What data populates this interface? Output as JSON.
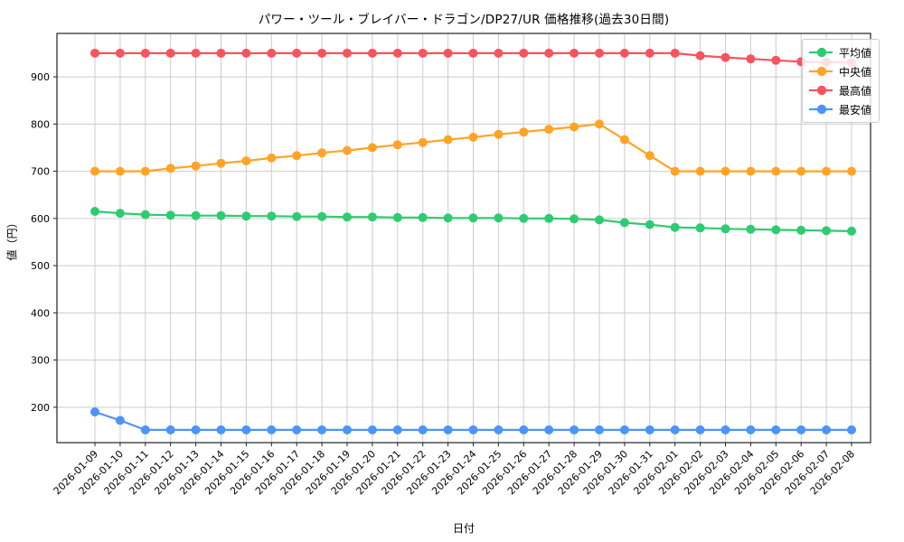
{
  "chart_data": {
    "type": "line",
    "title": "パワー・ツール・ブレイバー・ドラゴン/DP27/UR 価格推移(過去30日間)",
    "xlabel": "日付",
    "ylabel": "値（円）",
    "x": [
      "2026-01-09",
      "2026-01-10",
      "2026-01-11",
      "2026-01-12",
      "2026-01-13",
      "2026-01-14",
      "2026-01-15",
      "2026-01-16",
      "2026-01-17",
      "2026-01-18",
      "2026-01-19",
      "2026-01-20",
      "2026-01-21",
      "2026-01-22",
      "2026-01-23",
      "2026-01-24",
      "2026-01-25",
      "2026-01-26",
      "2026-01-27",
      "2026-01-28",
      "2026-01-29",
      "2026-01-30",
      "2026-01-31",
      "2026-02-01",
      "2026-02-02",
      "2026-02-03",
      "2026-02-04",
      "2026-02-05",
      "2026-02-06",
      "2026-02-07",
      "2026-02-08"
    ],
    "series": [
      {
        "name": "平均値",
        "color": "#2ecc71",
        "values": [
          615,
          611,
          608,
          607,
          606,
          606,
          605,
          605,
          604,
          604,
          603,
          603,
          602,
          602,
          601,
          601,
          601,
          600,
          600,
          599,
          597,
          591,
          587,
          581,
          580,
          578,
          577,
          576,
          575,
          574,
          573
        ]
      },
      {
        "name": "中央値",
        "color": "#ffa426",
        "values": [
          700,
          700,
          700,
          706,
          711,
          717,
          722,
          728,
          733,
          739,
          744,
          750,
          756,
          761,
          767,
          772,
          778,
          783,
          789,
          794,
          800,
          767,
          733,
          700,
          700,
          700,
          700,
          700,
          700,
          700,
          700
        ]
      },
      {
        "name": "最高値",
        "color": "#f8535e",
        "values": [
          950,
          950,
          950,
          950,
          950,
          950,
          950,
          950,
          950,
          950,
          950,
          950,
          950,
          950,
          950,
          950,
          950,
          950,
          950,
          950,
          950,
          950,
          950,
          950,
          945,
          941,
          938,
          935,
          932,
          931,
          930
        ]
      },
      {
        "name": "最安値",
        "color": "#4d94f8",
        "values": [
          190,
          172,
          152,
          152,
          152,
          152,
          152,
          152,
          152,
          152,
          152,
          152,
          152,
          152,
          152,
          152,
          152,
          152,
          152,
          152,
          152,
          152,
          152,
          152,
          152,
          152,
          152,
          152,
          152,
          152,
          152
        ]
      }
    ],
    "yticks": [
      200,
      300,
      400,
      500,
      600,
      700,
      800,
      900
    ],
    "ylim": [
      125,
      992
    ],
    "grid": true,
    "grid_color": "#cccccc",
    "spine_color": "#222222",
    "legend_position": "upper right"
  }
}
